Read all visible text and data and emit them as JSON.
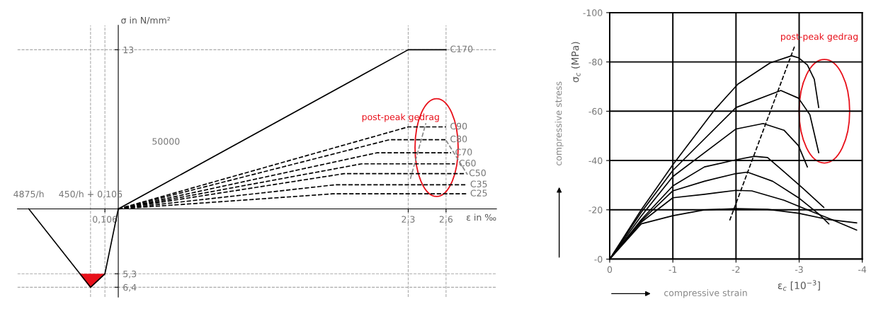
{
  "chart_data": [
    {
      "type": "line",
      "xlabel": "ε in ‰",
      "ylabel": "σ in N/mm²",
      "xlim": [
        -0.8,
        3.0
      ],
      "ylim": [
        -7.2,
        15
      ],
      "xticks": [
        {
          "value": -0.106,
          "label": "0,106"
        },
        {
          "value": 2.3,
          "label": "2,3"
        },
        {
          "value": 2.6,
          "label": "2,6"
        }
      ],
      "yticks": [
        13,
        {
          "value": -5.3,
          "label": "5,3"
        },
        {
          "value": -6.4,
          "label": "6,4"
        }
      ],
      "grid": false,
      "legend": false,
      "marker": "none",
      "series": [
        {
          "name": "C170",
          "color": "#000000",
          "line_style": "solid",
          "x": [
            0,
            2.3,
            2.6
          ],
          "values": [
            0,
            13,
            13
          ]
        },
        {
          "name": "C90",
          "color": "#000000",
          "line_style": "dashed",
          "x": [
            0,
            2.3,
            2.6
          ],
          "values": [
            0,
            6.7,
            6.7
          ]
        },
        {
          "name": "C80",
          "color": "#000000",
          "line_style": "dashed",
          "x": [
            0,
            2.15,
            2.6
          ],
          "values": [
            0,
            5.65,
            5.65
          ]
        },
        {
          "name": "C70",
          "color": "#000000",
          "line_style": "dashed",
          "x": [
            0,
            2.05,
            2.64
          ],
          "values": [
            0,
            4.58,
            4.58
          ]
        },
        {
          "name": "C60",
          "color": "#000000",
          "line_style": "dashed",
          "x": [
            0,
            1.93,
            2.67
          ],
          "values": [
            0,
            3.68,
            3.68
          ]
        },
        {
          "name": "C50",
          "color": "#000000",
          "line_style": "dashed",
          "x": [
            0,
            1.79,
            2.75
          ],
          "values": [
            0,
            2.88,
            2.88
          ]
        },
        {
          "name": "C35",
          "color": "#000000",
          "line_style": "dashed",
          "x": [
            0,
            1.72,
            2.76
          ],
          "values": [
            0,
            1.97,
            1.97
          ]
        },
        {
          "name": "C25",
          "color": "#000000",
          "line_style": "dashed",
          "x": [
            0,
            1.7,
            2.76
          ],
          "values": [
            0,
            1.23,
            1.23
          ]
        },
        {
          "color": "#000000",
          "line_style": "solid",
          "x": [
            -0.71,
            -0.22,
            -0.106,
            0
          ],
          "values": [
            0,
            -6.4,
            -5.3,
            0
          ]
        },
        {
          "color": "#e8101a",
          "line_style": "solid",
          "x": [
            -0.304,
            -0.22,
            -0.106
          ],
          "values": [
            -5.3,
            -6.4,
            -5.3
          ],
          "lower": [
            -5.3,
            -6.4,
            -5.3
          ],
          "upper": [
            -5.3,
            -5.3,
            -5.3
          ]
        },
        {
          "color": "#888888",
          "line_style": "dashed",
          "x": [
            2.6,
            2.77
          ],
          "values": [
            5.6,
            2.8
          ]
        },
        {
          "color": "#888888",
          "line_style": "dashed",
          "x": [
            2.317,
            2.44
          ],
          "values": [
            2.45,
            7.0
          ]
        }
      ],
      "ref_lines": [
        {
          "axis": "y",
          "value": 13
        },
        {
          "axis": "y",
          "value": -5.3
        },
        {
          "axis": "y",
          "value": -6.4
        },
        {
          "axis": "x",
          "value": 2.3
        },
        {
          "axis": "x",
          "value": 2.6
        },
        {
          "axis": "x",
          "value": -0.106
        },
        {
          "axis": "x",
          "value": -0.22
        }
      ],
      "annotations": [
        {
          "text": "4875/h",
          "x": -0.71,
          "y": 0
        },
        {
          "text": "450/h + 0,106",
          "x": -0.22,
          "y": 0
        },
        "50000",
        "post-peak gedrag"
      ]
    },
    {
      "type": "line",
      "xlabel": "ε$_{c}$ [10$^{−3}$]",
      "ylabel": "σ$_{c}$ (MPa)",
      "xlim": [
        0,
        -4
      ],
      "ylim": [
        0,
        -100
      ],
      "xticks": [
        0,
        -1,
        -2,
        -3,
        -4
      ],
      "yticks": [
        {
          "value": 0,
          "label": "-0"
        },
        -20,
        -40,
        -60,
        -80,
        -100
      ],
      "grid": true,
      "legend": false,
      "marker": "none",
      "series": [
        {
          "color": "#000000",
          "line_style": "solid",
          "x": [
            0,
            -0.5,
            -1,
            -1.66,
            -2.03,
            -2.54,
            -2.88,
            -2.99,
            -3.13,
            -3.24,
            -3.31
          ],
          "values": [
            0,
            -20,
            -38.3,
            -60.5,
            -71,
            -79.6,
            -82.5,
            -81.7,
            -78.8,
            -73,
            -61.5
          ]
        },
        {
          "color": "#000000",
          "line_style": "solid",
          "x": [
            0,
            -0.5,
            -1,
            -2,
            -2.71,
            -2.99,
            -3.17,
            -3.31
          ],
          "values": [
            0,
            -19,
            -36,
            -61.5,
            -68.4,
            -65.3,
            -58.6,
            -43.2
          ]
        },
        {
          "color": "#000000",
          "line_style": "solid",
          "x": [
            0,
            -0.5,
            -1,
            -2,
            -2.43,
            -2.76,
            -2.99,
            -3.13
          ],
          "values": [
            0,
            -17.5,
            -33.5,
            -52.8,
            -55,
            -52.3,
            -46,
            -37.4
          ]
        },
        {
          "color": "#000000",
          "line_style": "solid",
          "x": [
            0,
            -0.5,
            -1,
            -1.5,
            -2,
            -2.29,
            -2.5,
            -2.76,
            -3.06,
            -3.39
          ],
          "values": [
            0,
            -16,
            -29.7,
            -37.4,
            -40.3,
            -41.7,
            -41.2,
            -35.5,
            -28.7,
            -21
          ]
        },
        {
          "color": "#000000",
          "line_style": "solid",
          "x": [
            0,
            -0.5,
            -1,
            -1.5,
            -2,
            -2.18,
            -2.58,
            -2.99,
            -3.32,
            -3.47
          ],
          "values": [
            0,
            -15.5,
            -27.7,
            -31.6,
            -34.7,
            -35.3,
            -31.6,
            -24.9,
            -18.1,
            -14.3
          ]
        },
        {
          "color": "#000000",
          "line_style": "solid",
          "x": [
            0,
            -0.5,
            -1,
            -1.5,
            -2,
            -2.25,
            -2.76,
            -3.13,
            -3.5,
            -3.91
          ],
          "values": [
            0,
            -15,
            -24.9,
            -26.3,
            -27.9,
            -27.7,
            -23.9,
            -20,
            -16.2,
            -11.8
          ]
        },
        {
          "color": "#000000",
          "line_style": "solid",
          "x": [
            0,
            -0.5,
            -1,
            -1.5,
            -2,
            -2.5,
            -2.99,
            -3.43,
            -3.91
          ],
          "values": [
            0,
            -14.3,
            -17.6,
            -20,
            -20.5,
            -20.2,
            -18.6,
            -16.2,
            -14.7
          ]
        },
        {
          "color": "#000000",
          "line_style": "dashed",
          "x": [
            -1.9,
            -2.93
          ],
          "values": [
            -15.7,
            -86.5
          ]
        }
      ],
      "annotations": [
        "post-peak gedrag",
        "compressive stress",
        "compressive strain"
      ]
    }
  ]
}
